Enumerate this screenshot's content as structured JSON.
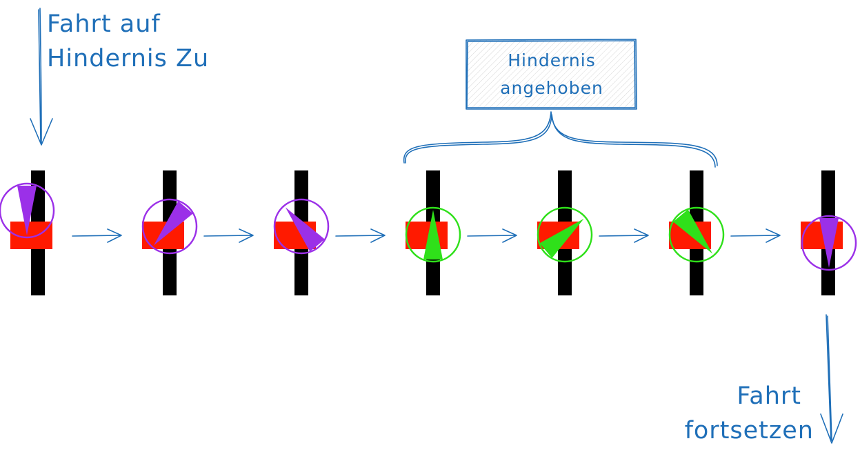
{
  "labels": {
    "start_line1": "Fahrt auf",
    "start_line2": "Hindernis Zu",
    "lifted_line1": "Hindernis",
    "lifted_line2": "angehoben",
    "end_line1": "Fahrt",
    "end_line2": "fortsetzen"
  },
  "colors": {
    "annotation": "#1f6fb8",
    "track": "#000000",
    "obstacle": "#ff1a00",
    "robot_normal": "#9b30e8",
    "robot_lifted": "#2fe01a"
  },
  "frames": [
    {
      "rotation_deg": 0,
      "state": "normal"
    },
    {
      "rotation_deg": 40,
      "state": "normal"
    },
    {
      "rotation_deg": 140,
      "state": "normal"
    },
    {
      "rotation_deg": 180,
      "state": "lifted"
    },
    {
      "rotation_deg": 230,
      "state": "lifted"
    },
    {
      "rotation_deg": 320,
      "state": "lifted"
    },
    {
      "rotation_deg": 360,
      "state": "normal"
    }
  ]
}
